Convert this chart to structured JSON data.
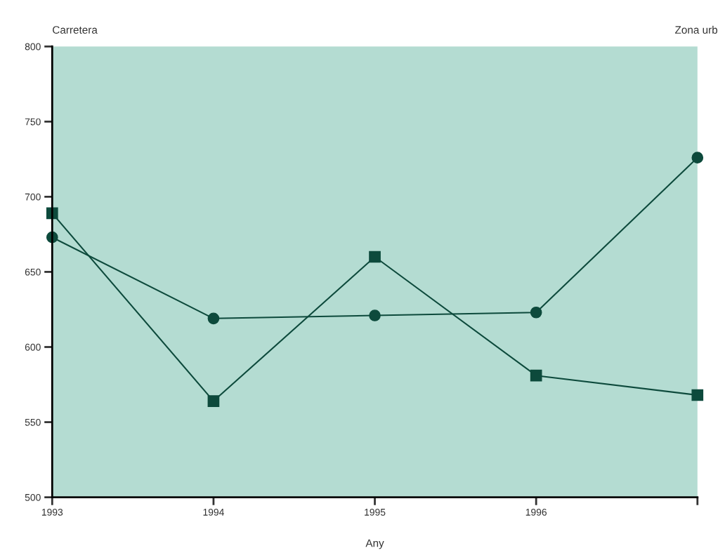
{
  "chart_data": {
    "type": "line",
    "xlabel": "Any",
    "annotations": [
      "Carretera",
      "Zona urb"
    ],
    "x": [
      1993,
      1994,
      1995,
      1996,
      1997
    ],
    "series": [
      {
        "color": "#0d4a3c",
        "marker": "square",
        "values": [
          689,
          564,
          660,
          581,
          568
        ]
      },
      {
        "color": "#0d4a3c",
        "marker": "circle",
        "values": [
          673,
          619,
          621,
          623,
          726
        ]
      }
    ],
    "xlim": [
      1993,
      1997
    ],
    "xticks": [
      1993,
      1994,
      1995,
      1996,
      {
        "value": 1997,
        "label": null
      }
    ],
    "ylim": [
      500,
      800
    ],
    "yticks": [
      500,
      550,
      600,
      650,
      700,
      750,
      800
    ],
    "grid": false,
    "legend": false,
    "line_style": "solid"
  }
}
